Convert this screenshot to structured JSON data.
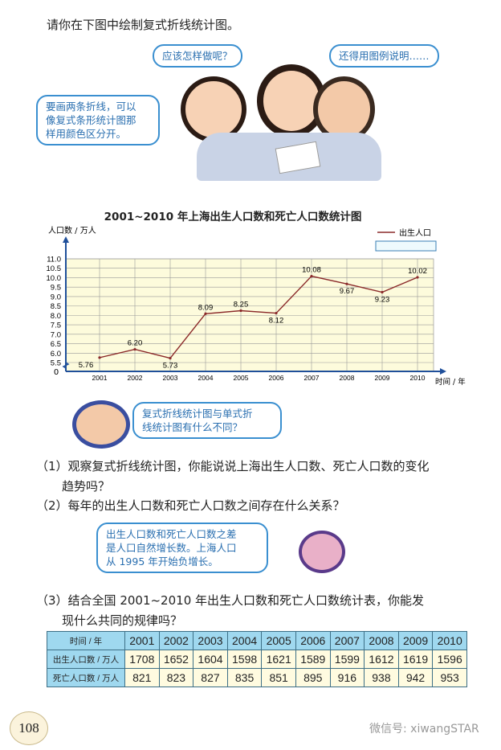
{
  "instruction": "请你在下图中绘制复式折线统计图。",
  "bubbles": {
    "b1": "应该怎样做呢？",
    "b2": "还得用图例说明……",
    "b3": [
      "要画两条折线，可以",
      "像复式条形统计图那",
      "样用颜色区分开。"
    ],
    "b4": [
      "复式折线统计图与单式折",
      "线统计图有什么不同？"
    ],
    "b5": [
      "出生人口数和死亡人口数之差",
      "是人口自然增长数。上海人口",
      "从 1995 年开始负增长。"
    ]
  },
  "chart_data": {
    "type": "line",
    "title": "2001~2010 年上海出生人口数和死亡人口数统计图",
    "ylabel": "人口数 / 万人",
    "xlabel": "时间 / 年",
    "origin_label": "0",
    "categories": [
      "2001",
      "2002",
      "2003",
      "2004",
      "2005",
      "2006",
      "2007",
      "2008",
      "2009",
      "2010"
    ],
    "yticks": [
      "5.5",
      "6.0",
      "6.5",
      "7.0",
      "7.5",
      "8.0",
      "8.5",
      "9.0",
      "9.5",
      "10.0",
      "10.5",
      "11.0"
    ],
    "ylim": [
      5.5,
      11.0
    ],
    "axis_break": true,
    "grid": true,
    "legend_position": "top-right",
    "series": [
      {
        "name": "出生人口",
        "color": "#8b2a2a",
        "values": [
          5.76,
          6.2,
          5.73,
          8.09,
          8.25,
          8.12,
          10.08,
          9.67,
          9.23,
          10.02
        ],
        "labels": [
          "5.76",
          "6.20",
          "5.73",
          "8.09",
          "8.25",
          "8.12",
          "10.08",
          "9.67",
          "9.23",
          "10.02"
        ]
      }
    ],
    "legend_empty_entry": ""
  },
  "questions": {
    "q1_num": "（1）",
    "q1": [
      "观察复式折线统计图，你能说说上海出生人口数、死亡人口数的变化",
      "趋势吗？"
    ],
    "q2_num": "（2）",
    "q2": "每年的出生人口数和死亡人口数之间存在什么关系？",
    "q3_num": "（3）",
    "q3": [
      "结合全国 2001~2010 年出生人口数和死亡人口数统计表，你能发",
      "现什么共同的规律吗？"
    ]
  },
  "table": {
    "header": [
      "时间 / 年",
      "2001",
      "2002",
      "2003",
      "2004",
      "2005",
      "2006",
      "2007",
      "2008",
      "2009",
      "2010"
    ],
    "rows": [
      [
        "出生人口数 / 万人",
        "1708",
        "1652",
        "1604",
        "1598",
        "1621",
        "1589",
        "1599",
        "1612",
        "1619",
        "1596"
      ],
      [
        "死亡人口数 / 万人",
        "821",
        "823",
        "827",
        "835",
        "851",
        "895",
        "916",
        "938",
        "942",
        "953"
      ]
    ]
  },
  "page_number": "108",
  "watermark": "微信号: xiwangSTAR"
}
